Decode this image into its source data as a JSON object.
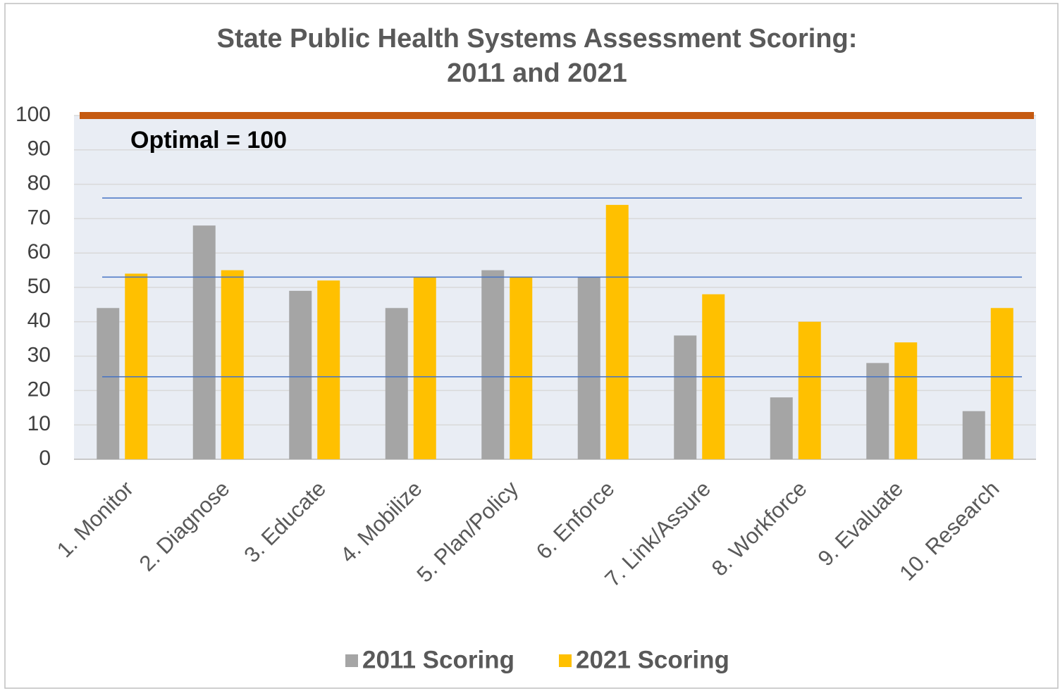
{
  "chart_data": {
    "type": "bar",
    "title": [
      "State Public Health Systems Assessment Scoring:",
      "2011 and 2021"
    ],
    "categories": [
      "1. Monitor",
      "2. Diagnose",
      "3. Educate",
      "4. Mobilize",
      "5. Plan/Policy",
      "6. Enforce",
      "7. Link/Assure",
      "8. Workforce",
      "9. Evaluate",
      "10. Research"
    ],
    "series": [
      {
        "name": "2011 Scoring",
        "color": "#a5a5a5",
        "values": [
          44,
          68,
          49,
          44,
          55,
          53,
          36,
          18,
          28,
          14
        ]
      },
      {
        "name": "2021 Scoring",
        "color": "#ffc000",
        "values": [
          54,
          55,
          52,
          53,
          53,
          74,
          48,
          40,
          34,
          44
        ]
      }
    ],
    "ylim": [
      0,
      100
    ],
    "yticks": [
      0,
      10,
      20,
      30,
      40,
      50,
      60,
      70,
      80,
      90,
      100
    ],
    "grid": true,
    "optimal": {
      "label": "Optimal = 100",
      "value": 100,
      "color": "#c55a11"
    },
    "reference_lines": {
      "color": "#4472c4",
      "values": [
        76,
        53,
        24
      ]
    },
    "legend": "bottom"
  }
}
